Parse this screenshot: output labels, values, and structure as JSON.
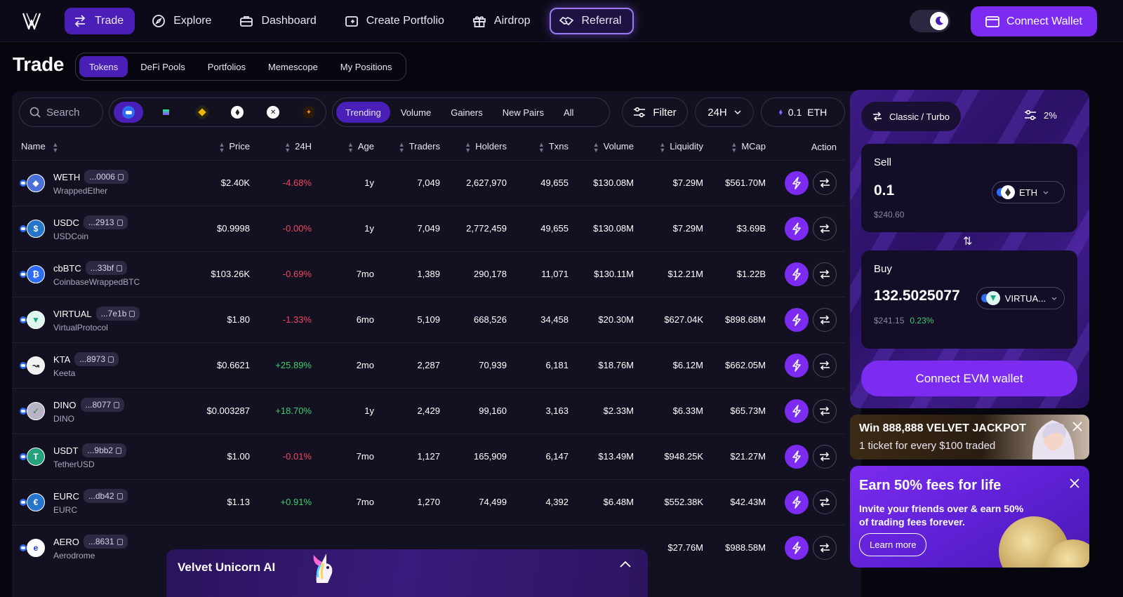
{
  "nav": {
    "items": [
      {
        "label": "Trade",
        "icon": "arrows-left-right-icon"
      },
      {
        "label": "Explore",
        "icon": "compass-icon"
      },
      {
        "label": "Dashboard",
        "icon": "briefcase-icon"
      },
      {
        "label": "Create Portfolio",
        "icon": "wallet-plus-icon"
      },
      {
        "label": "Airdrop",
        "icon": "gift-icon"
      },
      {
        "label": "Referral",
        "icon": "handshake-icon"
      }
    ],
    "connect_wallet": "Connect Wallet"
  },
  "page": {
    "title": "Trade",
    "subtabs": [
      "Tokens",
      "DeFi Pools",
      "Portfolios",
      "Memescope",
      "My Positions"
    ]
  },
  "filters": {
    "search_placeholder": "Search",
    "chains": [
      "base",
      "solana",
      "bnb",
      "ethereum",
      "arbitrum",
      "hyperliquid"
    ],
    "categories": [
      "Trending",
      "Volume",
      "Gainers",
      "New Pairs",
      "All"
    ],
    "filter_label": "Filter",
    "period": "24H",
    "amount": "0.1",
    "amount_unit": "ETH"
  },
  "table": {
    "headers": [
      "Name",
      "Price",
      "24H",
      "Age",
      "Traders",
      "Holders",
      "Txns",
      "Volume",
      "Liquidity",
      "MCap",
      "Action"
    ],
    "rows": [
      {
        "symbol": "WETH",
        "addr": "...0006",
        "name": "WrappedEther",
        "price": "$2.40K",
        "change": "-4.68%",
        "age": "1y",
        "traders": "7,049",
        "holders": "2,627,970",
        "txns": "49,655",
        "volume": "$130.08M",
        "liquidity": "$7.29M",
        "mcap": "$561.70M"
      },
      {
        "symbol": "USDC",
        "addr": "...2913",
        "name": "USDCoin",
        "price": "$0.9998",
        "change": "-0.00%",
        "age": "1y",
        "traders": "7,049",
        "holders": "2,772,459",
        "txns": "49,655",
        "volume": "$130.08M",
        "liquidity": "$7.29M",
        "mcap": "$3.69B"
      },
      {
        "symbol": "cbBTC",
        "addr": "...33bf",
        "name": "CoinbaseWrappedBTC",
        "price": "$103.26K",
        "change": "-0.69%",
        "age": "7mo",
        "traders": "1,389",
        "holders": "290,178",
        "txns": "11,071",
        "volume": "$130.11M",
        "liquidity": "$12.21M",
        "mcap": "$1.22B"
      },
      {
        "symbol": "VIRTUAL",
        "addr": "...7e1b",
        "name": "VirtualProtocol",
        "price": "$1.80",
        "change": "-1.33%",
        "age": "6mo",
        "traders": "5,109",
        "holders": "668,526",
        "txns": "34,458",
        "volume": "$20.30M",
        "liquidity": "$627.04K",
        "mcap": "$898.68M"
      },
      {
        "symbol": "KTA",
        "addr": "...8973",
        "name": "Keeta",
        "price": "$0.6621",
        "change": "+25.89%",
        "age": "2mo",
        "traders": "2,287",
        "holders": "70,939",
        "txns": "6,181",
        "volume": "$18.76M",
        "liquidity": "$6.12M",
        "mcap": "$662.05M"
      },
      {
        "symbol": "DINO",
        "addr": "...8077",
        "name": "DINO",
        "price": "$0.003287",
        "change": "+18.70%",
        "age": "1y",
        "traders": "2,429",
        "holders": "99,160",
        "txns": "3,163",
        "volume": "$2.33M",
        "liquidity": "$6.33M",
        "mcap": "$65.73M"
      },
      {
        "symbol": "USDT",
        "addr": "...9bb2",
        "name": "TetherUSD",
        "price": "$1.00",
        "change": "-0.01%",
        "age": "7mo",
        "traders": "1,127",
        "holders": "165,909",
        "txns": "6,147",
        "volume": "$13.49M",
        "liquidity": "$948.25K",
        "mcap": "$21.27M"
      },
      {
        "symbol": "EURC",
        "addr": "...db42",
        "name": "EURC",
        "price": "$1.13",
        "change": "+0.91%",
        "age": "7mo",
        "traders": "1,270",
        "holders": "74,499",
        "txns": "4,392",
        "volume": "$6.48M",
        "liquidity": "$552.38K",
        "mcap": "$42.43M"
      },
      {
        "symbol": "AERO",
        "addr": "...8631",
        "name": "Aerodrome",
        "price": "",
        "change": "",
        "age": "",
        "traders": "",
        "holders": "",
        "txns": "",
        "volume": "",
        "liquidity": "$27.76M",
        "mcap": "$988.58M"
      }
    ]
  },
  "unicorn": {
    "label": "Velvet Unicorn AI"
  },
  "swap": {
    "mode": "Classic / Turbo",
    "slippage": "2%",
    "sell_label": "Sell",
    "sell_amount": "0.1",
    "sell_token": "ETH",
    "sell_usd": "$240.60",
    "buy_label": "Buy",
    "buy_amount": "132.5025077",
    "buy_token": "VIRTUA...",
    "buy_usd": "$241.15",
    "buy_change": "0.23%",
    "connect": "Connect EVM wallet"
  },
  "jackpot": {
    "title": "Win 888,888 VELVET JACKPOT",
    "subtitle": "1 ticket for every $100 traded"
  },
  "referral_card": {
    "title": "Earn 50% fees for life",
    "body": "Invite your friends over & earn 50% of trading fees forever.",
    "cta": "Learn more"
  },
  "colors": {
    "accent": "#7b2cf0",
    "active_tab": "#4a1fb8",
    "negative": "#f0485f",
    "positive": "#3fcf6e",
    "panel": "#131121",
    "background": "#07060f"
  }
}
